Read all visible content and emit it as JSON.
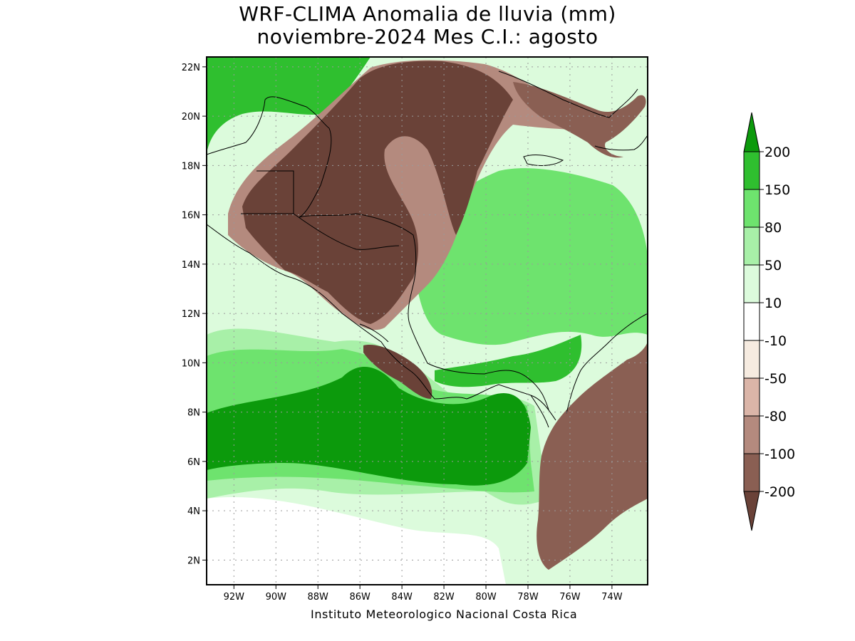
{
  "title": {
    "line1": "WRF-CLIMA Anomalia de lluvia (mm)",
    "line2": "noviembre-2024 Mes C.I.: agosto"
  },
  "credit": "Instituto Meteorologico Nacional Costa Rica",
  "map": {
    "lon_range": [
      -93.3,
      -72.3
    ],
    "lat_range": [
      1.0,
      22.4
    ],
    "grid": true,
    "lat_ticks": [
      {
        "value": 22,
        "label": "22N"
      },
      {
        "value": 20,
        "label": "20N"
      },
      {
        "value": 18,
        "label": "18N"
      },
      {
        "value": 16,
        "label": "16N"
      },
      {
        "value": 14,
        "label": "14N"
      },
      {
        "value": 12,
        "label": "12N"
      },
      {
        "value": 10,
        "label": "10N"
      },
      {
        "value": 8,
        "label": "8N"
      },
      {
        "value": 6,
        "label": "6N"
      },
      {
        "value": 4,
        "label": "4N"
      },
      {
        "value": 2,
        "label": "2N"
      }
    ],
    "lon_ticks": [
      {
        "value": -92,
        "label": "92W"
      },
      {
        "value": -90,
        "label": "90W"
      },
      {
        "value": -88,
        "label": "88W"
      },
      {
        "value": -86,
        "label": "86W"
      },
      {
        "value": -84,
        "label": "84W"
      },
      {
        "value": -82,
        "label": "82W"
      },
      {
        "value": -80,
        "label": "80W"
      },
      {
        "value": -78,
        "label": "78W"
      },
      {
        "value": -76,
        "label": "76W"
      },
      {
        "value": -74,
        "label": "74W"
      }
    ]
  },
  "colorbar": {
    "bins": [
      {
        "color": "#0c9a0c"
      },
      {
        "color": "#2fbf2f"
      },
      {
        "color": "#6ee36e"
      },
      {
        "color": "#a8f0a8"
      },
      {
        "color": "#dcfbdc"
      },
      {
        "color": "#ffffff"
      },
      {
        "color": "#f6ebe0"
      },
      {
        "color": "#dbb5a8"
      },
      {
        "color": "#b48a7e"
      },
      {
        "color": "#8a5f53"
      },
      {
        "color": "#6a4238"
      }
    ],
    "labels": [
      "200",
      "150",
      "80",
      "50",
      "10",
      "-10",
      "-50",
      "-80",
      "-100",
      "-200"
    ]
  },
  "fields": {
    "ocean_base": "#dcfbdc",
    "regions": [
      {
        "name": "south-white",
        "color": "#ffffff"
      },
      {
        "name": "pacific-light",
        "color": "#a8f0a8"
      },
      {
        "name": "pacific-mid",
        "color": "#6ee36e"
      },
      {
        "name": "pacific-dark",
        "color": "#0c9a0c"
      },
      {
        "name": "caribbean-mid",
        "color": "#6ee36e"
      },
      {
        "name": "nw-corner",
        "color": "#2fbf2f"
      },
      {
        "name": "central-america-dry",
        "color": "#6a4238"
      },
      {
        "name": "central-america-fringe",
        "color": "#b48a7e"
      },
      {
        "name": "colombia-dry",
        "color": "#8a5f53"
      },
      {
        "name": "cuba-dry",
        "color": "#8a5f53"
      },
      {
        "name": "costa-rica-dry",
        "color": "#6a4238"
      },
      {
        "name": "panama-wet",
        "color": "#2fbf2f"
      }
    ]
  }
}
